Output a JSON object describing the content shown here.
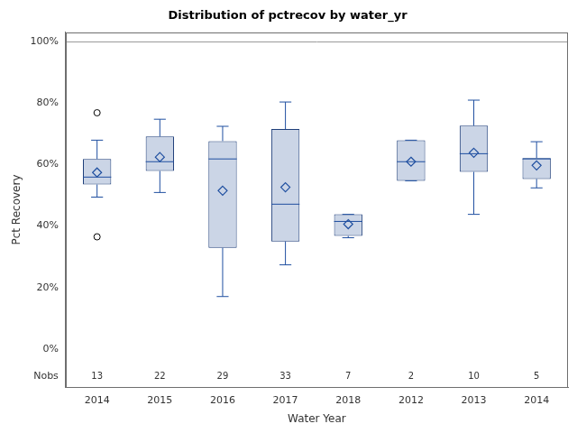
{
  "chart_data": {
    "type": "box",
    "title": "Distribution of pctrecov by water_yr",
    "x_label": "Water Year",
    "y_label": "Pct Recovery",
    "categories": [
      "2014",
      "2015",
      "2016",
      "2017",
      "2018",
      "2012",
      "2013",
      "2014"
    ],
    "boxes": [
      {
        "min": 49.4,
        "q1": 53.5,
        "median": 55.9,
        "q3": 61.8,
        "max": 67.9,
        "mean": 57.4,
        "outliers": [
          76.8,
          36.5
        ],
        "nobs": 13
      },
      {
        "min": 50.9,
        "q1": 57.9,
        "median": 60.9,
        "q3": 69.1,
        "max": 74.7,
        "mean": 62.4,
        "outliers": [],
        "nobs": 22
      },
      {
        "min": 17.1,
        "q1": 32.9,
        "median": 61.8,
        "q3": 67.6,
        "max": 72.4,
        "mean": 51.5,
        "outliers": [],
        "nobs": 29
      },
      {
        "min": 27.4,
        "q1": 35.0,
        "median": 47.1,
        "q3": 71.5,
        "max": 80.3,
        "mean": 52.6,
        "outliers": [],
        "nobs": 33
      },
      {
        "min": 36.2,
        "q1": 36.8,
        "median": 41.5,
        "q3": 43.8,
        "max": 43.8,
        "mean": 40.6,
        "outliers": [],
        "nobs": 7
      },
      {
        "min": 54.7,
        "q1": 54.7,
        "median": 60.9,
        "q3": 67.9,
        "max": 67.9,
        "mean": 60.9,
        "outliers": [],
        "nobs": 2
      },
      {
        "min": 43.8,
        "q1": 57.6,
        "median": 63.5,
        "q3": 72.6,
        "max": 80.9,
        "mean": 63.8,
        "outliers": [],
        "nobs": 10
      },
      {
        "min": 52.4,
        "q1": 55.3,
        "median": 61.8,
        "q3": 62.1,
        "max": 67.4,
        "mean": 59.7,
        "outliers": [],
        "nobs": 5
      }
    ],
    "nobs_label": "Nobs",
    "reference_line": 100,
    "ylim": [
      -12.4,
      103
    ],
    "yticks": [
      {
        "value": 0,
        "label": "0%"
      },
      {
        "value": 20,
        "label": "20%"
      },
      {
        "value": 40,
        "label": "40%"
      },
      {
        "value": 60,
        "label": "60%"
      },
      {
        "value": 80,
        "label": "80%"
      },
      {
        "value": 100,
        "label": "100%"
      }
    ],
    "grid": false,
    "color": "#cbd5e6"
  }
}
